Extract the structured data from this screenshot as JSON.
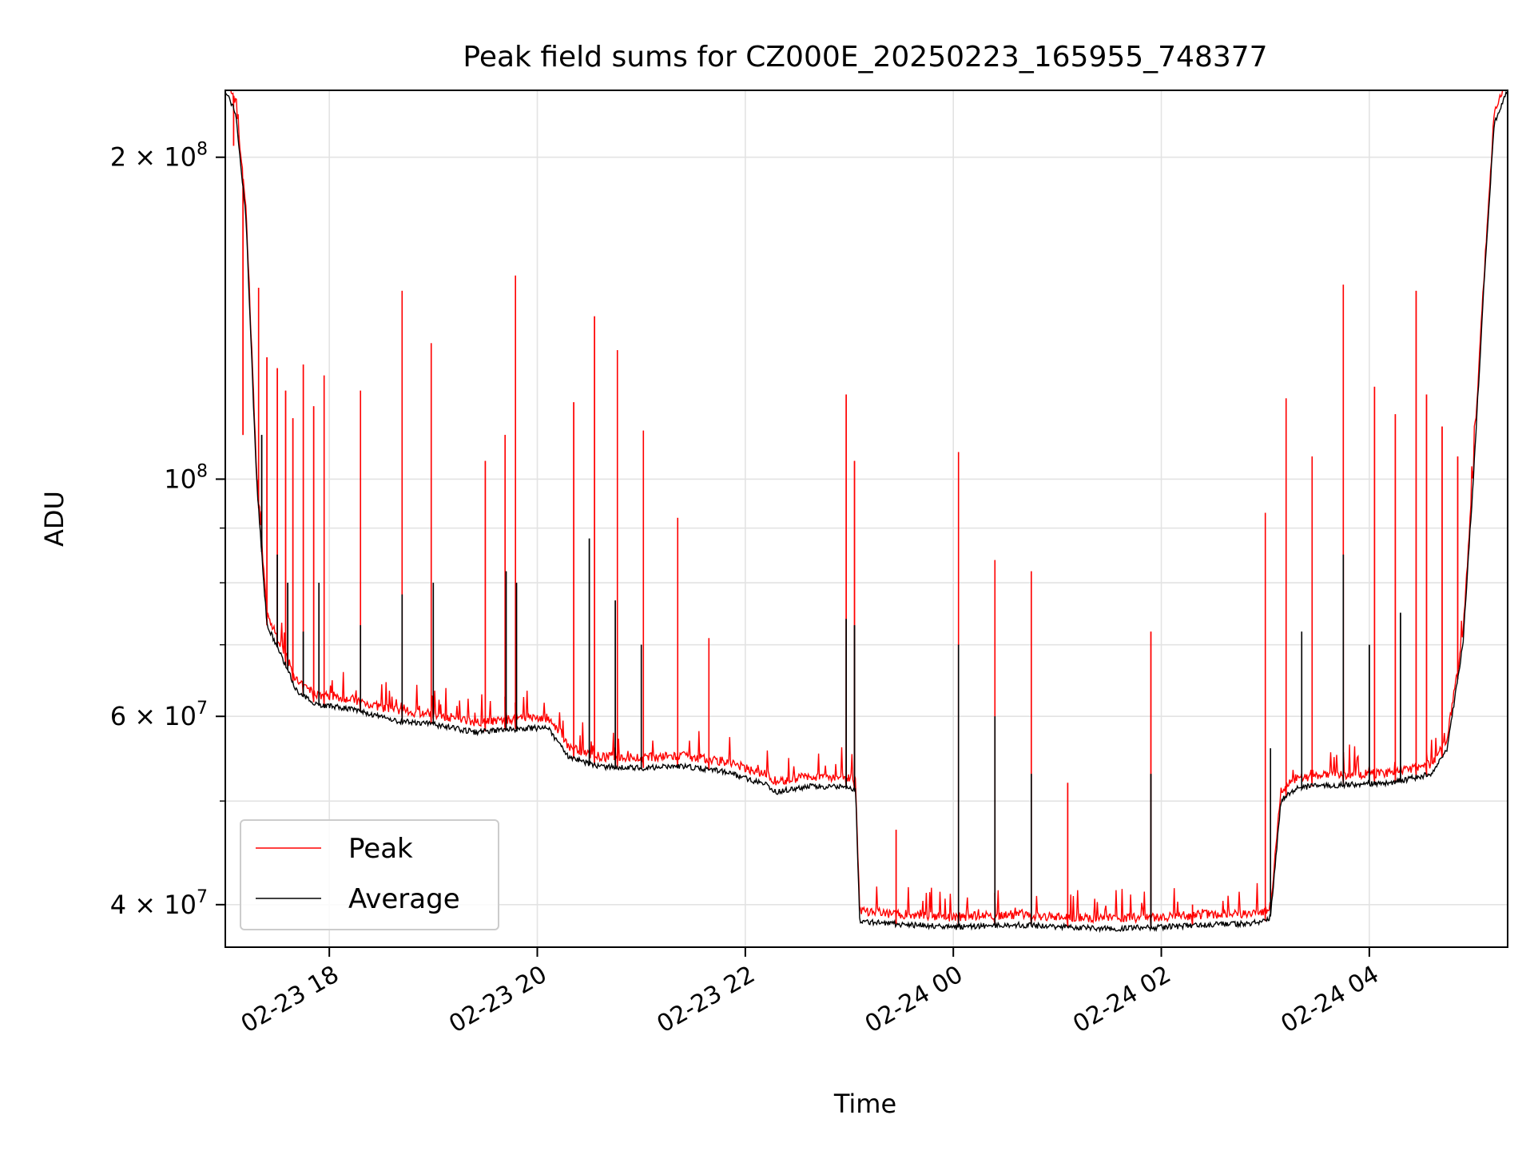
{
  "chart_data": {
    "type": "line",
    "title": "Peak field sums for CZ000E_20250223_165955_748377",
    "xlabel": "Time",
    "ylabel": "ADU",
    "y_scale": "log",
    "ylim": [
      36500000,
      231000000
    ],
    "xlim_hours_from_02-23_00": [
      17.0,
      29.33
    ],
    "grid": true,
    "legend_position": "lower-left",
    "colors": {
      "peak": "#ff0000",
      "average": "#000000",
      "grid": "#e3e3e3"
    },
    "x_ticks": [
      {
        "value": 18,
        "label": "02-23 18"
      },
      {
        "value": 20,
        "label": "02-23 20"
      },
      {
        "value": 22,
        "label": "02-23 22"
      },
      {
        "value": 24,
        "label": "02-24 00"
      },
      {
        "value": 26,
        "label": "02-24 02"
      },
      {
        "value": 28,
        "label": "02-24 04"
      }
    ],
    "y_major_ticks": [
      {
        "value": 200000000,
        "mantissa": "2",
        "exp": "8",
        "label": "2 × 10^8"
      },
      {
        "value": 100000000,
        "mantissa": "",
        "exp": "8",
        "label": "10^8"
      },
      {
        "value": 60000000,
        "mantissa": "6",
        "exp": "7",
        "label": "6 × 10^7"
      },
      {
        "value": 40000000,
        "mantissa": "4",
        "exp": "7",
        "label": "4 × 10^7"
      }
    ],
    "y_minor_ticks": [
      300000000,
      90000000,
      80000000,
      70000000,
      50000000,
      30000000
    ],
    "x_unit": "hours since 2025-02-23 00:00",
    "series": [
      {
        "name": "Average",
        "baseline_hours": [
          17.0,
          17.1,
          17.2,
          17.3,
          17.4,
          17.55,
          17.7,
          17.9,
          18.2,
          18.6,
          19.0,
          19.4,
          19.9,
          20.1,
          20.3,
          20.6,
          21.0,
          21.4,
          21.8,
          22.2,
          22.3,
          22.6,
          23.0,
          23.06,
          23.1,
          23.4,
          23.8,
          24.0,
          24.2,
          24.6,
          25.0,
          25.5,
          26.0,
          26.4,
          26.8,
          27.0,
          27.05,
          27.15,
          27.3,
          27.8,
          28.2,
          28.4,
          28.6,
          28.75,
          28.9,
          29.0,
          29.1,
          29.2,
          29.33
        ],
        "baseline_adu": [
          231000000,
          220000000,
          175000000,
          100000000,
          73000000,
          68000000,
          63000000,
          61500000,
          61000000,
          59500000,
          59000000,
          58000000,
          58500000,
          58500000,
          55000000,
          53800000,
          53700000,
          53900000,
          53300000,
          51800000,
          51000000,
          51600000,
          51500000,
          51200000,
          38600000,
          38400000,
          38200000,
          38100000,
          38200000,
          38300000,
          38150000,
          38000000,
          38100000,
          38300000,
          38400000,
          38600000,
          39000000,
          50000000,
          51500000,
          51800000,
          52000000,
          52500000,
          53000000,
          56000000,
          70000000,
          100000000,
          150000000,
          215000000,
          231000000
        ],
        "spikes": [
          {
            "x": 17.35,
            "y": 110000000
          },
          {
            "x": 17.5,
            "y": 85000000
          },
          {
            "x": 17.6,
            "y": 80000000
          },
          {
            "x": 17.75,
            "y": 72000000
          },
          {
            "x": 17.9,
            "y": 80000000
          },
          {
            "x": 18.3,
            "y": 73000000
          },
          {
            "x": 18.7,
            "y": 78000000
          },
          {
            "x": 19.0,
            "y": 80000000
          },
          {
            "x": 19.7,
            "y": 82000000
          },
          {
            "x": 19.8,
            "y": 80000000
          },
          {
            "x": 20.5,
            "y": 88000000
          },
          {
            "x": 20.75,
            "y": 77000000
          },
          {
            "x": 21.0,
            "y": 70000000
          },
          {
            "x": 22.97,
            "y": 74000000
          },
          {
            "x": 23.05,
            "y": 73000000
          },
          {
            "x": 24.05,
            "y": 70000000
          },
          {
            "x": 24.4,
            "y": 60000000
          },
          {
            "x": 24.75,
            "y": 53000000
          },
          {
            "x": 25.9,
            "y": 53000000
          },
          {
            "x": 27.05,
            "y": 56000000
          },
          {
            "x": 27.35,
            "y": 72000000
          },
          {
            "x": 27.75,
            "y": 85000000
          },
          {
            "x": 28.0,
            "y": 70000000
          },
          {
            "x": 28.3,
            "y": 75000000
          }
        ]
      },
      {
        "name": "Peak",
        "baseline_offset": 1.012,
        "spikes": [
          {
            "x": 17.08,
            "y": 205000000
          },
          {
            "x": 17.17,
            "y": 110000000
          },
          {
            "x": 17.32,
            "y": 151000000
          },
          {
            "x": 17.4,
            "y": 130000000
          },
          {
            "x": 17.5,
            "y": 127000000
          },
          {
            "x": 17.58,
            "y": 121000000
          },
          {
            "x": 17.65,
            "y": 114000000
          },
          {
            "x": 17.75,
            "y": 128000000
          },
          {
            "x": 17.85,
            "y": 117000000
          },
          {
            "x": 17.95,
            "y": 125000000
          },
          {
            "x": 18.3,
            "y": 121000000
          },
          {
            "x": 18.7,
            "y": 150000000
          },
          {
            "x": 18.98,
            "y": 134000000
          },
          {
            "x": 19.5,
            "y": 104000000
          },
          {
            "x": 19.69,
            "y": 110000000
          },
          {
            "x": 19.79,
            "y": 155000000
          },
          {
            "x": 20.35,
            "y": 118000000
          },
          {
            "x": 20.55,
            "y": 142000000
          },
          {
            "x": 20.77,
            "y": 132000000
          },
          {
            "x": 21.02,
            "y": 111000000
          },
          {
            "x": 21.35,
            "y": 92000000
          },
          {
            "x": 21.65,
            "y": 71000000
          },
          {
            "x": 22.97,
            "y": 120000000
          },
          {
            "x": 23.05,
            "y": 104000000
          },
          {
            "x": 23.45,
            "y": 47000000
          },
          {
            "x": 24.05,
            "y": 106000000
          },
          {
            "x": 24.4,
            "y": 84000000
          },
          {
            "x": 24.75,
            "y": 82000000
          },
          {
            "x": 25.1,
            "y": 52000000
          },
          {
            "x": 25.9,
            "y": 72000000
          },
          {
            "x": 26.3,
            "y": 40000000
          },
          {
            "x": 27.0,
            "y": 93000000
          },
          {
            "x": 27.2,
            "y": 119000000
          },
          {
            "x": 27.45,
            "y": 105000000
          },
          {
            "x": 27.75,
            "y": 152000000
          },
          {
            "x": 28.05,
            "y": 122000000
          },
          {
            "x": 28.25,
            "y": 115000000
          },
          {
            "x": 28.45,
            "y": 150000000
          },
          {
            "x": 28.55,
            "y": 120000000
          },
          {
            "x": 28.7,
            "y": 112000000
          },
          {
            "x": 28.85,
            "y": 105000000
          }
        ]
      }
    ],
    "legend": [
      {
        "label": "Peak",
        "color": "#ff0000"
      },
      {
        "label": "Average",
        "color": "#000000"
      }
    ]
  }
}
